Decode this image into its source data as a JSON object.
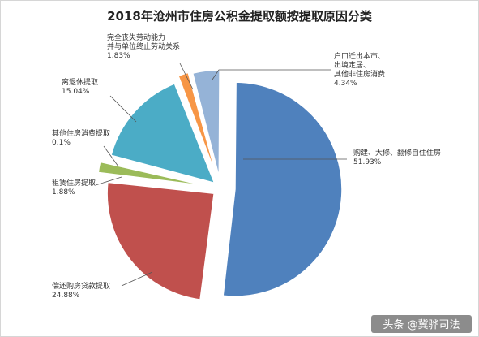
{
  "chart_data": {
    "type": "pie",
    "title": "2018年沧州市住房公积金提取额按提取原因分类",
    "slices": [
      {
        "label_lines": [
          "购建、大修、翻修自住住房"
        ],
        "value_text": "51.93%",
        "value": 51.93,
        "color": "#4f81bd"
      },
      {
        "label_lines": [
          "偿还购房贷款提取"
        ],
        "value_text": "24.88%",
        "value": 24.88,
        "color": "#c0504d"
      },
      {
        "label_lines": [
          "租赁住房提取"
        ],
        "value_text": "1.88%",
        "value": 1.88,
        "color": "#9bbb59"
      },
      {
        "label_lines": [
          "其他住房消费提取"
        ],
        "value_text": "0.1%",
        "value": 0.1,
        "color": "#8064a2"
      },
      {
        "label_lines": [
          "离退休提取"
        ],
        "value_text": "15.04%",
        "value": 15.04,
        "color": "#4bacc6"
      },
      {
        "label_lines": [
          "完全丧失劳动能力",
          "并与单位终止劳动关系"
        ],
        "value_text": "1.83%",
        "value": 1.83,
        "color": "#f79646"
      },
      {
        "label_lines": [
          "户口迁出本市、",
          "出境定居、",
          "其他非住房消费"
        ],
        "value_text": "4.34%",
        "value": 4.34,
        "color": "#95b3d7"
      }
    ],
    "legend": "none"
  },
  "watermark": "头条 @冀骅司法"
}
